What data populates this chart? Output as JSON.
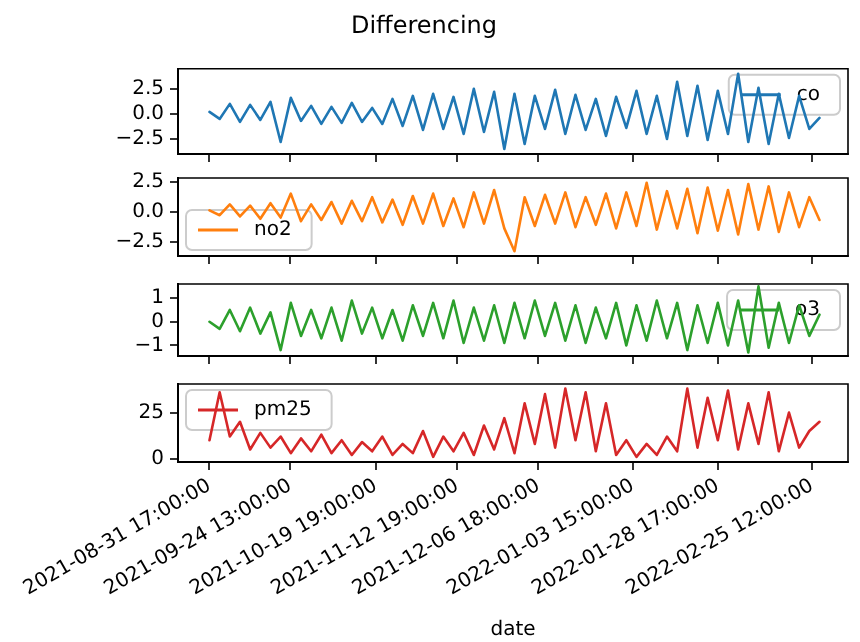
{
  "chart_data": [
    {
      "type": "line",
      "title": "Differencing",
      "legend": "top right",
      "tick_labels": "y",
      "x": [
        "2021-08-31T17:00",
        "2021-09-03T17:00",
        "2021-09-06T17:00",
        "2021-09-09T17:00",
        "2021-09-12T17:00",
        "2021-09-15T17:00",
        "2021-09-18T17:00",
        "2021-09-21T17:00",
        "2021-09-24T17:00",
        "2021-09-27T17:00",
        "2021-09-30T17:00",
        "2021-10-03T17:00",
        "2021-10-06T17:00",
        "2021-10-09T17:00",
        "2021-10-12T17:00",
        "2021-10-15T17:00",
        "2021-10-18T17:00",
        "2021-10-21T17:00",
        "2021-10-24T17:00",
        "2021-10-27T17:00",
        "2021-10-30T17:00",
        "2021-11-02T17:00",
        "2021-11-05T17:00",
        "2021-11-08T17:00",
        "2021-11-11T17:00",
        "2021-11-14T17:00",
        "2021-11-17T17:00",
        "2021-11-20T17:00",
        "2021-11-23T17:00",
        "2021-11-26T17:00",
        "2021-11-29T17:00",
        "2021-12-02T17:00",
        "2021-12-05T17:00",
        "2021-12-08T17:00",
        "2021-12-11T17:00",
        "2021-12-14T17:00",
        "2021-12-17T17:00",
        "2021-12-20T17:00",
        "2021-12-23T17:00",
        "2021-12-26T17:00",
        "2021-12-29T17:00",
        "2022-01-01T17:00",
        "2022-01-04T17:00",
        "2022-01-07T17:00",
        "2022-01-10T17:00",
        "2022-01-13T17:00",
        "2022-01-16T17:00",
        "2022-01-19T17:00",
        "2022-01-22T17:00",
        "2022-01-25T17:00",
        "2022-01-28T17:00",
        "2022-01-31T17:00",
        "2022-02-03T17:00",
        "2022-02-06T17:00",
        "2022-02-09T17:00",
        "2022-02-12T17:00",
        "2022-02-15T17:00",
        "2022-02-18T17:00",
        "2022-02-21T17:00",
        "2022-02-24T17:00",
        "2022-02-27T17:00"
      ],
      "series": [
        {
          "name": "co",
          "color": "#1f77b4",
          "values": [
            0.2,
            -0.5,
            1.0,
            -0.8,
            0.9,
            -0.6,
            1.2,
            -2.8,
            1.6,
            -0.7,
            0.8,
            -1.0,
            0.7,
            -0.9,
            1.1,
            -0.8,
            0.6,
            -1.0,
            1.5,
            -1.2,
            1.8,
            -1.6,
            2.0,
            -1.5,
            1.7,
            -2.0,
            2.5,
            -1.8,
            2.2,
            -3.5,
            2.0,
            -3.0,
            1.8,
            -1.5,
            2.4,
            -2.0,
            1.9,
            -1.6,
            1.5,
            -2.2,
            1.7,
            -1.4,
            2.3,
            -2.0,
            1.8,
            -2.5,
            3.2,
            -2.2,
            2.8,
            -2.6,
            2.3,
            -2.0,
            4.0,
            -2.8,
            2.6,
            -3.0,
            2.0,
            -2.4,
            1.8,
            -1.5,
            -0.4
          ]
        }
      ],
      "xlim": [
        "2021-08-22T10:00",
        "2022-03-08T03:00"
      ],
      "xticks": [
        {
          "value": "2021-08-31T17:00",
          "label": null
        },
        {
          "value": "2021-09-24T13:00",
          "label": null
        },
        {
          "value": "2021-10-19T19:00",
          "label": null
        },
        {
          "value": "2021-11-12T19:00",
          "label": null
        },
        {
          "value": "2021-12-06T18:00",
          "label": null
        },
        {
          "value": "2022-01-03T15:00",
          "label": null
        },
        {
          "value": "2022-01-28T17:00",
          "label": null
        },
        {
          "value": "2022-02-25T12:00",
          "label": null
        }
      ],
      "ylim": [
        -4.0,
        4.5
      ],
      "yticks": [
        {
          "value": -2.5,
          "label": "−2.5"
        },
        {
          "value": 0,
          "label": "0.0"
        },
        2.5
      ]
    },
    {
      "type": "line",
      "legend": "bottom left",
      "tick_labels": "y",
      "x": [
        "2021-08-31T17:00",
        "2021-09-03T17:00",
        "2021-09-06T17:00",
        "2021-09-09T17:00",
        "2021-09-12T17:00",
        "2021-09-15T17:00",
        "2021-09-18T17:00",
        "2021-09-21T17:00",
        "2021-09-24T17:00",
        "2021-09-27T17:00",
        "2021-09-30T17:00",
        "2021-10-03T17:00",
        "2021-10-06T17:00",
        "2021-10-09T17:00",
        "2021-10-12T17:00",
        "2021-10-15T17:00",
        "2021-10-18T17:00",
        "2021-10-21T17:00",
        "2021-10-24T17:00",
        "2021-10-27T17:00",
        "2021-10-30T17:00",
        "2021-11-02T17:00",
        "2021-11-05T17:00",
        "2021-11-08T17:00",
        "2021-11-11T17:00",
        "2021-11-14T17:00",
        "2021-11-17T17:00",
        "2021-11-20T17:00",
        "2021-11-23T17:00",
        "2021-11-26T17:00",
        "2021-11-29T17:00",
        "2021-12-02T17:00",
        "2021-12-05T17:00",
        "2021-12-08T17:00",
        "2021-12-11T17:00",
        "2021-12-14T17:00",
        "2021-12-17T17:00",
        "2021-12-20T17:00",
        "2021-12-23T17:00",
        "2021-12-26T17:00",
        "2021-12-29T17:00",
        "2022-01-01T17:00",
        "2022-01-04T17:00",
        "2022-01-07T17:00",
        "2022-01-10T17:00",
        "2022-01-13T17:00",
        "2022-01-16T17:00",
        "2022-01-19T17:00",
        "2022-01-22T17:00",
        "2022-01-25T17:00",
        "2022-01-28T17:00",
        "2022-01-31T17:00",
        "2022-02-03T17:00",
        "2022-02-06T17:00",
        "2022-02-09T17:00",
        "2022-02-12T17:00",
        "2022-02-15T17:00",
        "2022-02-18T17:00",
        "2022-02-21T17:00",
        "2022-02-24T17:00",
        "2022-02-27T17:00"
      ],
      "series": [
        {
          "name": "no2",
          "color": "#ff7f0e",
          "values": [
            0.1,
            -0.3,
            0.6,
            -0.4,
            0.5,
            -0.6,
            0.7,
            -0.5,
            1.5,
            -0.8,
            0.6,
            -0.7,
            0.8,
            -1.0,
            0.9,
            -0.8,
            1.2,
            -0.9,
            1.0,
            -1.1,
            1.3,
            -1.0,
            1.5,
            -1.2,
            1.1,
            -1.3,
            1.6,
            -1.0,
            1.8,
            -1.4,
            -3.3,
            1.2,
            -1.2,
            1.4,
            -1.0,
            1.6,
            -1.3,
            1.2,
            -1.1,
            1.5,
            -1.4,
            1.6,
            -1.2,
            2.4,
            -1.5,
            1.7,
            -1.4,
            1.9,
            -1.8,
            2.0,
            -1.6,
            1.8,
            -1.9,
            2.3,
            -1.5,
            2.1,
            -1.7,
            1.6,
            -1.3,
            1.2,
            -0.7
          ]
        }
      ],
      "xlim": [
        "2021-08-22T10:00",
        "2022-03-08T03:00"
      ],
      "xticks": [
        {
          "value": "2021-08-31T17:00",
          "label": null
        },
        {
          "value": "2021-09-24T13:00",
          "label": null
        },
        {
          "value": "2021-10-19T19:00",
          "label": null
        },
        {
          "value": "2021-11-12T19:00",
          "label": null
        },
        {
          "value": "2021-12-06T18:00",
          "label": null
        },
        {
          "value": "2022-01-03T15:00",
          "label": null
        },
        {
          "value": "2022-01-28T17:00",
          "label": null
        },
        {
          "value": "2022-02-25T12:00",
          "label": null
        }
      ],
      "ylim": [
        -3.7,
        2.8
      ],
      "yticks": [
        {
          "value": -2.5,
          "label": "−2.5"
        },
        {
          "value": 0,
          "label": "0.0"
        },
        2.5
      ]
    },
    {
      "type": "line",
      "legend": "top right",
      "tick_labels": "y",
      "x": [
        "2021-08-31T17:00",
        "2021-09-03T17:00",
        "2021-09-06T17:00",
        "2021-09-09T17:00",
        "2021-09-12T17:00",
        "2021-09-15T17:00",
        "2021-09-18T17:00",
        "2021-09-21T17:00",
        "2021-09-24T17:00",
        "2021-09-27T17:00",
        "2021-09-30T17:00",
        "2021-10-03T17:00",
        "2021-10-06T17:00",
        "2021-10-09T17:00",
        "2021-10-12T17:00",
        "2021-10-15T17:00",
        "2021-10-18T17:00",
        "2021-10-21T17:00",
        "2021-10-24T17:00",
        "2021-10-27T17:00",
        "2021-10-30T17:00",
        "2021-11-02T17:00",
        "2021-11-05T17:00",
        "2021-11-08T17:00",
        "2021-11-11T17:00",
        "2021-11-14T17:00",
        "2021-11-17T17:00",
        "2021-11-20T17:00",
        "2021-11-23T17:00",
        "2021-11-26T17:00",
        "2021-11-29T17:00",
        "2021-12-02T17:00",
        "2021-12-05T17:00",
        "2021-12-08T17:00",
        "2021-12-11T17:00",
        "2021-12-14T17:00",
        "2021-12-17T17:00",
        "2021-12-20T17:00",
        "2021-12-23T17:00",
        "2021-12-26T17:00",
        "2021-12-29T17:00",
        "2022-01-01T17:00",
        "2022-01-04T17:00",
        "2022-01-07T17:00",
        "2022-01-10T17:00",
        "2022-01-13T17:00",
        "2022-01-16T17:00",
        "2022-01-19T17:00",
        "2022-01-22T17:00",
        "2022-01-25T17:00",
        "2022-01-28T17:00",
        "2022-01-31T17:00",
        "2022-02-03T17:00",
        "2022-02-06T17:00",
        "2022-02-09T17:00",
        "2022-02-12T17:00",
        "2022-02-15T17:00",
        "2022-02-18T17:00",
        "2022-02-21T17:00",
        "2022-02-24T17:00",
        "2022-02-27T17:00"
      ],
      "series": [
        {
          "name": "o3",
          "color": "#2ca02c",
          "values": [
            0.0,
            -0.3,
            0.5,
            -0.4,
            0.6,
            -0.5,
            0.4,
            -1.2,
            0.8,
            -0.6,
            0.5,
            -0.7,
            0.6,
            -0.8,
            0.9,
            -0.5,
            0.6,
            -0.7,
            0.5,
            -0.8,
            0.7,
            -0.6,
            0.8,
            -0.7,
            0.9,
            -0.9,
            0.6,
            -0.8,
            0.7,
            -0.9,
            0.8,
            -0.7,
            0.9,
            -0.6,
            0.8,
            -0.8,
            0.7,
            -0.9,
            0.6,
            -0.7,
            0.8,
            -1.0,
            0.7,
            -0.8,
            0.9,
            -0.7,
            0.8,
            -1.2,
            0.7,
            -0.9,
            0.8,
            -1.0,
            0.9,
            -1.3,
            1.5,
            -1.1,
            0.8,
            -0.9,
            0.7,
            -0.6,
            0.3
          ]
        }
      ],
      "xlim": [
        "2021-08-22T10:00",
        "2022-03-08T03:00"
      ],
      "xticks": [
        {
          "value": "2021-08-31T17:00",
          "label": null
        },
        {
          "value": "2021-09-24T13:00",
          "label": null
        },
        {
          "value": "2021-10-19T19:00",
          "label": null
        },
        {
          "value": "2021-11-12T19:00",
          "label": null
        },
        {
          "value": "2021-12-06T18:00",
          "label": null
        },
        {
          "value": "2022-01-03T15:00",
          "label": null
        },
        {
          "value": "2022-01-28T17:00",
          "label": null
        },
        {
          "value": "2022-02-25T12:00",
          "label": null
        }
      ],
      "ylim": [
        -1.45,
        1.6
      ],
      "yticks": [
        {
          "value": -1,
          "label": "−1"
        },
        0,
        1
      ]
    },
    {
      "type": "line",
      "legend": "top left",
      "xlabel": "date",
      "x": [
        "2021-08-31T17:00",
        "2021-09-03T17:00",
        "2021-09-06T17:00",
        "2021-09-09T17:00",
        "2021-09-12T17:00",
        "2021-09-15T17:00",
        "2021-09-18T17:00",
        "2021-09-21T17:00",
        "2021-09-24T17:00",
        "2021-09-27T17:00",
        "2021-09-30T17:00",
        "2021-10-03T17:00",
        "2021-10-06T17:00",
        "2021-10-09T17:00",
        "2021-10-12T17:00",
        "2021-10-15T17:00",
        "2021-10-18T17:00",
        "2021-10-21T17:00",
        "2021-10-24T17:00",
        "2021-10-27T17:00",
        "2021-10-30T17:00",
        "2021-11-02T17:00",
        "2021-11-05T17:00",
        "2021-11-08T17:00",
        "2021-11-11T17:00",
        "2021-11-14T17:00",
        "2021-11-17T17:00",
        "2021-11-20T17:00",
        "2021-11-23T17:00",
        "2021-11-26T17:00",
        "2021-11-29T17:00",
        "2021-12-02T17:00",
        "2021-12-05T17:00",
        "2021-12-08T17:00",
        "2021-12-11T17:00",
        "2021-12-14T17:00",
        "2021-12-17T17:00",
        "2021-12-20T17:00",
        "2021-12-23T17:00",
        "2021-12-26T17:00",
        "2021-12-29T17:00",
        "2022-01-01T17:00",
        "2022-01-04T17:00",
        "2022-01-07T17:00",
        "2022-01-10T17:00",
        "2022-01-13T17:00",
        "2022-01-16T17:00",
        "2022-01-19T17:00",
        "2022-01-22T17:00",
        "2022-01-25T17:00",
        "2022-01-28T17:00",
        "2022-01-31T17:00",
        "2022-02-03T17:00",
        "2022-02-06T17:00",
        "2022-02-09T17:00",
        "2022-02-12T17:00",
        "2022-02-15T17:00",
        "2022-02-18T17:00",
        "2022-02-21T17:00",
        "2022-02-24T17:00",
        "2022-02-27T17:00"
      ],
      "series": [
        {
          "name": "pm25",
          "color": "#d62728",
          "values": [
            10,
            36,
            12,
            20,
            5,
            14,
            6,
            12,
            3,
            11,
            4,
            13,
            3,
            10,
            2,
            9,
            4,
            12,
            2,
            8,
            3,
            15,
            1,
            12,
            4,
            14,
            2,
            18,
            5,
            22,
            3,
            30,
            8,
            35,
            6,
            38,
            10,
            36,
            4,
            30,
            2,
            10,
            1,
            8,
            2,
            12,
            4,
            38,
            6,
            33,
            10,
            37,
            5,
            30,
            8,
            36,
            4,
            25,
            6,
            15,
            20
          ]
        }
      ],
      "xlim": [
        "2021-08-22T10:00",
        "2022-03-08T03:00"
      ],
      "xticks": [
        {
          "value": "2021-08-31T17:00",
          "label": "2021-08-31 17:00:00"
        },
        {
          "value": "2021-09-24T13:00",
          "label": "2021-09-24 13:00:00"
        },
        {
          "value": "2021-10-19T19:00",
          "label": "2021-10-19 19:00:00"
        },
        {
          "value": "2021-11-12T19:00",
          "label": "2021-11-12 19:00:00"
        },
        {
          "value": "2021-12-06T18:00",
          "label": "2021-12-06 18:00:00"
        },
        {
          "value": "2022-01-03T15:00",
          "label": "2022-01-03 15:00:00"
        },
        {
          "value": "2022-01-28T17:00",
          "label": "2022-01-28 17:00:00"
        },
        {
          "value": "2022-02-25T12:00",
          "label": "2022-02-25 12:00:00"
        }
      ],
      "ylim": [
        -1.8,
        40.5
      ],
      "yticks": [
        0,
        25
      ]
    }
  ]
}
